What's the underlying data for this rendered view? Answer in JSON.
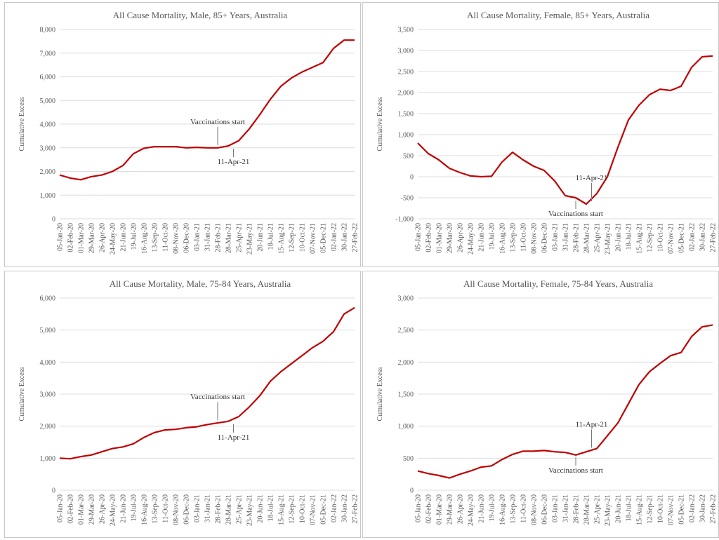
{
  "x_categories": [
    "05-Jan-20",
    "02-Feb-20",
    "01-Mar-20",
    "29-Mar-20",
    "26-Apr-20",
    "24-May-20",
    "21-Jun-20",
    "19-Jul-20",
    "16-Aug-20",
    "13-Sep-20",
    "11-Oct-20",
    "08-Nov-20",
    "06-Dec-20",
    "03-Jan-21",
    "31-Jan-21",
    "28-Feb-21",
    "28-Mar-21",
    "25-Apr-21",
    "23-May-21",
    "20-Jun-21",
    "18-Jul-21",
    "15-Aug-21",
    "12-Sep-21",
    "10-Oct-21",
    "07-Nov-21",
    "05-Dec-21",
    "02-Jan-22",
    "30-Jan-22",
    "27-Feb-22"
  ],
  "chart_data": [
    {
      "type": "line",
      "title": "All Cause Mortality, Male, 85+ Years, Australia",
      "ylabel": "Cumulative Excess",
      "ylim": [
        0,
        8000
      ],
      "yticks": [
        0,
        1000,
        2000,
        3000,
        4000,
        5000,
        6000,
        7000,
        8000
      ],
      "yticklabels": [
        "0",
        "1,000",
        "2,000",
        "3,000",
        "4,000",
        "5,000",
        "6,000",
        "7,000",
        "8,000"
      ],
      "values": [
        1850,
        1720,
        1650,
        1780,
        1850,
        2000,
        2250,
        2750,
        2980,
        3050,
        3050,
        3050,
        3000,
        3020,
        3000,
        3000,
        3080,
        3300,
        3800,
        4400,
        5050,
        5600,
        5950,
        6200,
        6400,
        6600,
        7200,
        7550,
        7550
      ],
      "annotations": [
        {
          "text": "Vaccinations start",
          "x": "28-Feb-21",
          "y": 3000,
          "position": "above"
        },
        {
          "text": "11-Apr-21",
          "x": "11-Apr-21",
          "y": 3080,
          "position": "below"
        }
      ]
    },
    {
      "type": "line",
      "title": "All Cause Mortality, Female, 85+ Years, Australia",
      "ylabel": "Cumulative Excess",
      "ylim": [
        -1000,
        3500
      ],
      "yticks": [
        -1000,
        -500,
        0,
        500,
        1000,
        1500,
        2000,
        2500,
        3000,
        3500
      ],
      "yticklabels": [
        "-1,000",
        "-500",
        "0",
        "500",
        "1,000",
        "1,500",
        "2,000",
        "2,500",
        "3,000",
        "3,500"
      ],
      "values": [
        800,
        550,
        400,
        200,
        100,
        20,
        0,
        10,
        350,
        580,
        400,
        250,
        150,
        -100,
        -450,
        -500,
        -650,
        -400,
        0,
        700,
        1350,
        1700,
        1950,
        2080,
        2050,
        2150,
        2600,
        2850,
        2870
      ],
      "annotations": [
        {
          "text": "11-Apr-21",
          "x": "11-Apr-21",
          "y": -650,
          "position": "above"
        },
        {
          "text": "Vaccinations start",
          "x": "28-Feb-21",
          "y": -500,
          "position": "below"
        }
      ]
    },
    {
      "type": "line",
      "title": "All Cause Mortality, Male, 75-84 Years, Australia",
      "ylabel": "Cumulative Excess",
      "ylim": [
        0,
        6000
      ],
      "yticks": [
        0,
        1000,
        2000,
        3000,
        4000,
        5000,
        6000
      ],
      "yticklabels": [
        "0",
        "1,000",
        "2,000",
        "3,000",
        "4,000",
        "5,000",
        "6,000"
      ],
      "values": [
        1000,
        980,
        1050,
        1100,
        1200,
        1300,
        1350,
        1450,
        1650,
        1800,
        1880,
        1900,
        1950,
        1980,
        2050,
        2100,
        2150,
        2300,
        2600,
        2950,
        3400,
        3700,
        3950,
        4200,
        4450,
        4650,
        4950,
        5500,
        5700
      ],
      "annotations": [
        {
          "text": "Vaccinations start",
          "x": "28-Feb-21",
          "y": 2100,
          "position": "above"
        },
        {
          "text": "11-Apr-21",
          "x": "11-Apr-21",
          "y": 2150,
          "position": "below"
        }
      ]
    },
    {
      "type": "line",
      "title": "All Cause Mortality, Female, 75-84 Years, Australia",
      "ylabel": "Cumulative Excess",
      "ylim": [
        0,
        3000
      ],
      "yticks": [
        0,
        500,
        1000,
        1500,
        2000,
        2500,
        3000
      ],
      "yticklabels": [
        "0",
        "500",
        "1,000",
        "1,500",
        "2,000",
        "2,500",
        "3,000"
      ],
      "values": [
        300,
        260,
        230,
        190,
        250,
        300,
        360,
        380,
        480,
        560,
        610,
        610,
        620,
        600,
        590,
        550,
        600,
        650,
        850,
        1050,
        1350,
        1650,
        1850,
        1980,
        2100,
        2150,
        2400,
        2550,
        2580
      ],
      "annotations": [
        {
          "text": "11-Apr-21",
          "x": "11-Apr-21",
          "y": 620,
          "position": "above"
        },
        {
          "text": "Vaccinations start",
          "x": "28-Feb-21",
          "y": 560,
          "position": "below"
        }
      ]
    }
  ],
  "colors": {
    "series": "#c00000",
    "grid": "#dcdcdc",
    "text": "#555555"
  }
}
